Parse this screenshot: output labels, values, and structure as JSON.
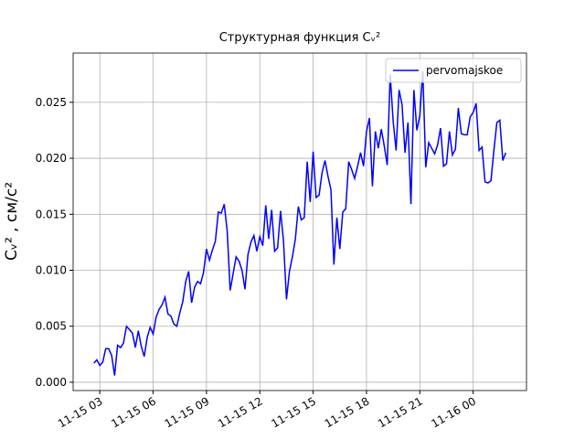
{
  "chart_data": {
    "type": "line",
    "title": "Структурная функция Cᵥ²",
    "y_label": "Cᵥ² , см/с²",
    "legend_position": "upper right",
    "grid": true,
    "x": [
      "11-15 02:40",
      "11-15 02:50",
      "11-15 03:00",
      "11-15 03:10",
      "11-15 03:20",
      "11-15 03:30",
      "11-15 03:40",
      "11-15 03:50",
      "11-15 04:00",
      "11-15 04:10",
      "11-15 04:20",
      "11-15 04:30",
      "11-15 04:40",
      "11-15 04:50",
      "11-15 05:00",
      "11-15 05:10",
      "11-15 05:20",
      "11-15 05:30",
      "11-15 05:40",
      "11-15 05:50",
      "11-15 06:00",
      "11-15 06:10",
      "11-15 06:20",
      "11-15 06:30",
      "11-15 06:40",
      "11-15 06:50",
      "11-15 07:00",
      "11-15 07:10",
      "11-15 07:20",
      "11-15 07:30",
      "11-15 07:40",
      "11-15 07:50",
      "11-15 08:00",
      "11-15 08:10",
      "11-15 08:20",
      "11-15 08:30",
      "11-15 08:40",
      "11-15 08:50",
      "11-15 09:00",
      "11-15 09:10",
      "11-15 09:20",
      "11-15 09:30",
      "11-15 09:40",
      "11-15 09:50",
      "11-15 10:00",
      "11-15 10:10",
      "11-15 10:20",
      "11-15 10:30",
      "11-15 10:40",
      "11-15 10:50",
      "11-15 11:00",
      "11-15 11:10",
      "11-15 11:20",
      "11-15 11:30",
      "11-15 11:40",
      "11-15 11:50",
      "11-15 12:00",
      "11-15 12:10",
      "11-15 12:20",
      "11-15 12:30",
      "11-15 12:40",
      "11-15 12:50",
      "11-15 13:00",
      "11-15 13:10",
      "11-15 13:20",
      "11-15 13:30",
      "11-15 13:40",
      "11-15 13:50",
      "11-15 14:00",
      "11-15 14:10",
      "11-15 14:20",
      "11-15 14:30",
      "11-15 14:40",
      "11-15 14:50",
      "11-15 15:00",
      "11-15 15:10",
      "11-15 15:20",
      "11-15 15:30",
      "11-15 15:40",
      "11-15 15:50",
      "11-15 16:00",
      "11-15 16:10",
      "11-15 16:20",
      "11-15 16:30",
      "11-15 16:40",
      "11-15 16:50",
      "11-15 17:00",
      "11-15 17:10",
      "11-15 17:20",
      "11-15 17:30",
      "11-15 17:40",
      "11-15 17:50",
      "11-15 18:00",
      "11-15 18:10",
      "11-15 18:20",
      "11-15 18:30",
      "11-15 18:40",
      "11-15 18:50",
      "11-15 19:00",
      "11-15 19:10",
      "11-15 19:20",
      "11-15 19:30",
      "11-15 19:40",
      "11-15 19:50",
      "11-15 20:00",
      "11-15 20:10",
      "11-15 20:20",
      "11-15 20:30",
      "11-15 20:40",
      "11-15 20:50",
      "11-15 21:00",
      "11-15 21:10",
      "11-15 21:20",
      "11-15 21:30",
      "11-15 21:40",
      "11-15 21:50",
      "11-15 22:00",
      "11-15 22:10",
      "11-15 22:20",
      "11-15 22:30",
      "11-15 22:40",
      "11-15 22:50",
      "11-15 23:00",
      "11-15 23:10",
      "11-15 23:20",
      "11-15 23:30",
      "11-15 23:40",
      "11-15 23:50",
      "11-16 00:00",
      "11-16 00:10",
      "11-16 00:20",
      "11-16 00:30",
      "11-16 00:40",
      "11-16 00:50",
      "11-16 01:00",
      "11-16 01:10",
      "11-16 01:20",
      "11-16 01:30",
      "11-16 01:40",
      "11-16 01:50"
    ],
    "series": [
      {
        "name": "pervomajskoe",
        "color": "#0000ff",
        "values": [
          0.0017,
          0.002,
          0.0015,
          0.0018,
          0.003,
          0.003,
          0.0024,
          0.0006,
          0.0033,
          0.0031,
          0.0035,
          0.005,
          0.0047,
          0.0044,
          0.0031,
          0.0046,
          0.0032,
          0.0023,
          0.004,
          0.0049,
          0.0043,
          0.0058,
          0.0065,
          0.0069,
          0.0076,
          0.0061,
          0.0059,
          0.0052,
          0.005,
          0.0062,
          0.0072,
          0.009,
          0.0099,
          0.0071,
          0.0085,
          0.009,
          0.0088,
          0.0098,
          0.0119,
          0.0109,
          0.0118,
          0.0126,
          0.0152,
          0.0151,
          0.0159,
          0.0135,
          0.0082,
          0.0097,
          0.0112,
          0.0108,
          0.01,
          0.0083,
          0.0114,
          0.0125,
          0.0131,
          0.0117,
          0.013,
          0.0122,
          0.0158,
          0.0128,
          0.0154,
          0.0117,
          0.012,
          0.0153,
          0.0126,
          0.0074,
          0.0099,
          0.0112,
          0.0128,
          0.0157,
          0.0145,
          0.0147,
          0.0197,
          0.0161,
          0.0206,
          0.0165,
          0.0167,
          0.0187,
          0.0198,
          0.0184,
          0.0172,
          0.0105,
          0.0147,
          0.0119,
          0.0152,
          0.0155,
          0.0197,
          0.019,
          0.0182,
          0.0193,
          0.0205,
          0.0193,
          0.0224,
          0.0236,
          0.0175,
          0.0224,
          0.0209,
          0.0226,
          0.0211,
          0.0194,
          0.0275,
          0.0233,
          0.0207,
          0.0261,
          0.0248,
          0.0205,
          0.0232,
          0.0159,
          0.0261,
          0.0225,
          0.0238,
          0.0278,
          0.0192,
          0.0214,
          0.0209,
          0.0204,
          0.0212,
          0.0227,
          0.0193,
          0.0195,
          0.0224,
          0.0203,
          0.0208,
          0.0245,
          0.0222,
          0.0221,
          0.0221,
          0.0237,
          0.0241,
          0.0249,
          0.0207,
          0.021,
          0.0179,
          0.0178,
          0.018,
          0.0207,
          0.0232,
          0.0234,
          0.0198,
          0.0205
        ]
      }
    ],
    "xlim": [
      "11-15 01:30",
      "11-16 03:00"
    ],
    "xticks": [
      "11-15 03",
      "11-15 06",
      "11-15 09",
      "11-15 12",
      "11-15 15",
      "11-15 18",
      "11-15 21",
      "11-16 00"
    ],
    "ylim": [
      -0.00074,
      0.0294
    ],
    "yticks": [
      {
        "value": 0,
        "label": "0.000"
      },
      {
        "value": 0.005,
        "label": "0.005"
      },
      {
        "value": 0.01,
        "label": "0.010"
      },
      {
        "value": 0.015,
        "label": "0.015"
      },
      {
        "value": 0.02,
        "label": "0.020"
      },
      {
        "value": 0.025,
        "label": "0.025"
      }
    ]
  }
}
